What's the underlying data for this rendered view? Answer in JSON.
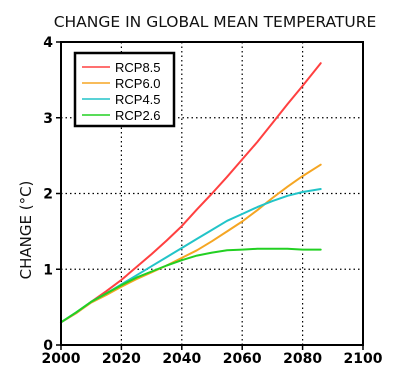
{
  "chart_data": {
    "type": "line",
    "title": "CHANGE IN GLOBAL MEAN TEMPERATURE",
    "xlabel": "",
    "ylabel": "CHANGE (°C)",
    "xlim": [
      2000,
      2100
    ],
    "ylim": [
      0,
      4
    ],
    "x_ticks": [
      2000,
      2020,
      2040,
      2060,
      2080,
      2100
    ],
    "y_ticks": [
      0,
      1,
      2,
      3,
      4
    ],
    "grid": true,
    "legend_position": "top-left",
    "x": [
      2000,
      2005,
      2010,
      2015,
      2020,
      2025,
      2030,
      2035,
      2040,
      2045,
      2050,
      2055,
      2060,
      2065,
      2070,
      2075,
      2080,
      2086
    ],
    "series": [
      {
        "name": "RCP8.5",
        "color": "#ff4040",
        "values": [
          0.3,
          0.42,
          0.57,
          0.71,
          0.86,
          1.03,
          1.2,
          1.38,
          1.57,
          1.79,
          2.0,
          2.22,
          2.45,
          2.68,
          2.93,
          3.18,
          3.42,
          3.72
        ]
      },
      {
        "name": "RCP6.0",
        "color": "#f5a623",
        "values": [
          0.3,
          0.42,
          0.56,
          0.66,
          0.77,
          0.87,
          0.96,
          1.05,
          1.15,
          1.25,
          1.37,
          1.5,
          1.63,
          1.78,
          1.94,
          2.09,
          2.23,
          2.38
        ]
      },
      {
        "name": "RCP4.5",
        "color": "#22c4c8",
        "values": [
          0.3,
          0.43,
          0.57,
          0.68,
          0.8,
          0.92,
          1.04,
          1.16,
          1.28,
          1.4,
          1.52,
          1.64,
          1.73,
          1.82,
          1.9,
          1.97,
          2.02,
          2.06
        ]
      },
      {
        "name": "RCP2.6",
        "color": "#22d022",
        "values": [
          0.3,
          0.43,
          0.57,
          0.68,
          0.79,
          0.89,
          0.97,
          1.05,
          1.12,
          1.18,
          1.22,
          1.25,
          1.26,
          1.27,
          1.27,
          1.27,
          1.26,
          1.26
        ]
      }
    ]
  }
}
